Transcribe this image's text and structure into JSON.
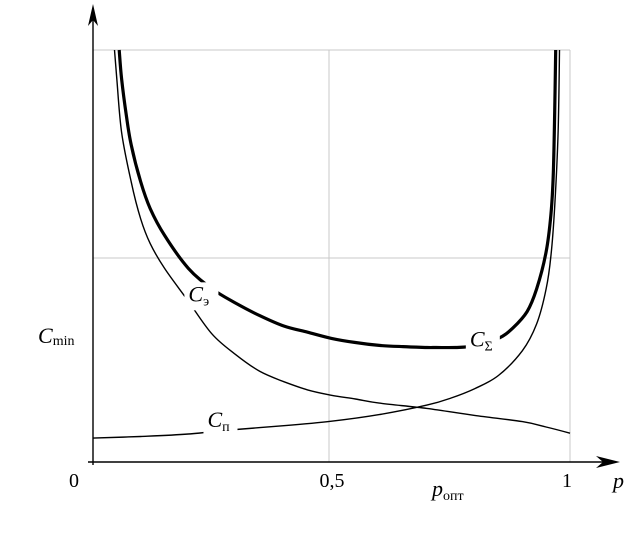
{
  "chart_data": {
    "type": "line",
    "x_axis_label": "p",
    "y_axis_label": "C",
    "y_axis_label_sub": "min",
    "xlim": [
      0,
      1
    ],
    "x_ticks": [
      {
        "value": 0,
        "label": "0"
      },
      {
        "value": 0.5,
        "label": "0,5"
      },
      {
        "value": 1,
        "label": "1"
      }
    ],
    "marker_label": "p",
    "marker_label_sub": "опт",
    "marker_x": 0.72,
    "grid": true,
    "series": [
      {
        "name": "C",
        "name_sub": "Σ",
        "label_point": [
          0.79,
          0.28
        ],
        "width": 3.2,
        "points": [
          [
            0.055,
            1.0
          ],
          [
            0.06,
            0.93
          ],
          [
            0.07,
            0.84
          ],
          [
            0.08,
            0.77
          ],
          [
            0.1,
            0.68
          ],
          [
            0.12,
            0.615
          ],
          [
            0.15,
            0.55
          ],
          [
            0.2,
            0.47
          ],
          [
            0.25,
            0.42
          ],
          [
            0.3,
            0.385
          ],
          [
            0.35,
            0.355
          ],
          [
            0.4,
            0.33
          ],
          [
            0.45,
            0.315
          ],
          [
            0.5,
            0.3
          ],
          [
            0.55,
            0.29
          ],
          [
            0.6,
            0.283
          ],
          [
            0.65,
            0.28
          ],
          [
            0.7,
            0.278
          ],
          [
            0.72,
            0.278
          ],
          [
            0.76,
            0.278
          ],
          [
            0.8,
            0.282
          ],
          [
            0.85,
            0.3
          ],
          [
            0.88,
            0.325
          ],
          [
            0.91,
            0.365
          ],
          [
            0.93,
            0.42
          ],
          [
            0.95,
            0.51
          ],
          [
            0.96,
            0.6
          ],
          [
            0.965,
            0.7
          ],
          [
            0.968,
            0.85
          ],
          [
            0.97,
            1.0
          ]
        ]
      },
      {
        "name": "C",
        "name_sub": "э",
        "label_point": [
          0.2,
          0.39
        ],
        "width": 1.4,
        "points": [
          [
            0.045,
            1.0
          ],
          [
            0.05,
            0.93
          ],
          [
            0.06,
            0.8
          ],
          [
            0.08,
            0.68
          ],
          [
            0.1,
            0.59
          ],
          [
            0.12,
            0.53
          ],
          [
            0.15,
            0.47
          ],
          [
            0.2,
            0.39
          ],
          [
            0.25,
            0.31
          ],
          [
            0.3,
            0.26
          ],
          [
            0.35,
            0.22
          ],
          [
            0.4,
            0.195
          ],
          [
            0.45,
            0.175
          ],
          [
            0.5,
            0.162
          ],
          [
            0.55,
            0.153
          ],
          [
            0.6,
            0.143
          ],
          [
            0.7,
            0.13
          ],
          [
            0.8,
            0.113
          ],
          [
            0.9,
            0.098
          ],
          [
            0.95,
            0.085
          ],
          [
            1.0,
            0.07
          ]
        ]
      },
      {
        "name": "C",
        "name_sub": "п",
        "label_point": [
          0.24,
          0.085
        ],
        "width": 1.4,
        "points": [
          [
            0.0,
            0.058
          ],
          [
            0.1,
            0.062
          ],
          [
            0.2,
            0.068
          ],
          [
            0.3,
            0.079
          ],
          [
            0.4,
            0.088
          ],
          [
            0.5,
            0.099
          ],
          [
            0.6,
            0.115
          ],
          [
            0.7,
            0.138
          ],
          [
            0.75,
            0.155
          ],
          [
            0.8,
            0.178
          ],
          [
            0.85,
            0.21
          ],
          [
            0.9,
            0.27
          ],
          [
            0.93,
            0.335
          ],
          [
            0.95,
            0.42
          ],
          [
            0.96,
            0.5
          ],
          [
            0.968,
            0.62
          ],
          [
            0.975,
            0.8
          ],
          [
            0.978,
            1.0
          ]
        ]
      }
    ]
  }
}
